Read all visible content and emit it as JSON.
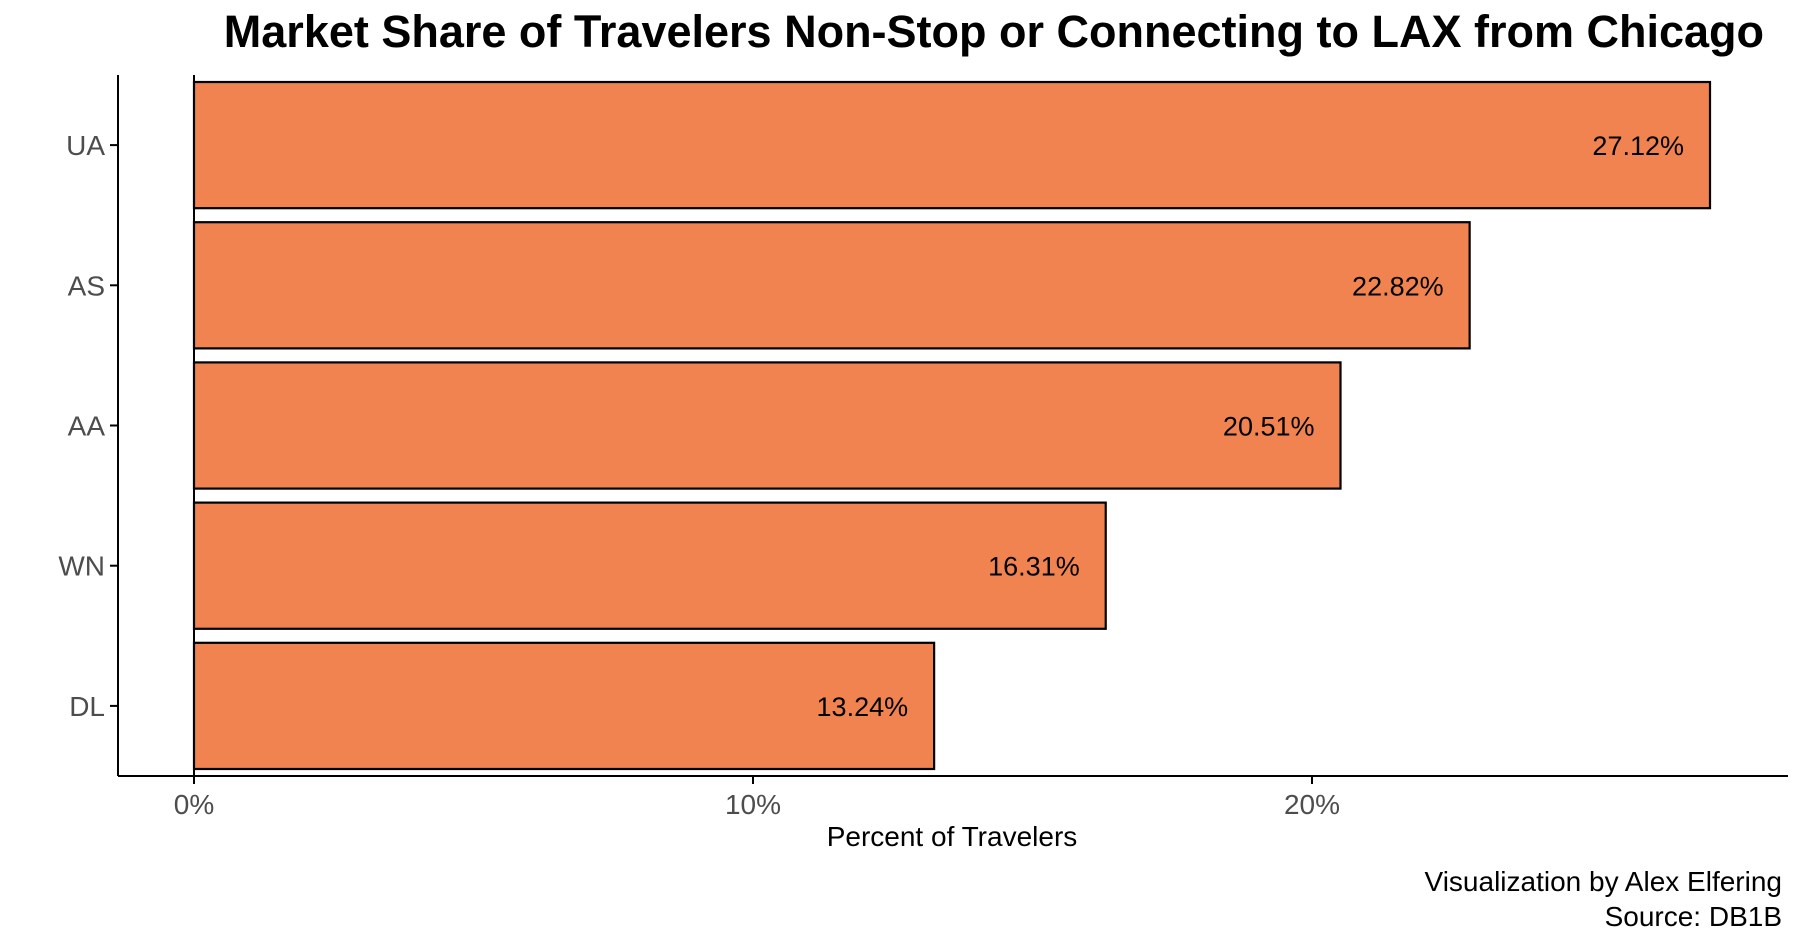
{
  "chart_data": {
    "type": "bar",
    "orientation": "horizontal",
    "title": "Market Share of Travelers Non-Stop or Connecting to LAX from Chicago",
    "xlabel": "Percent of Travelers",
    "ylabel": "",
    "categories": [
      "UA",
      "AS",
      "AA",
      "WN",
      "DL"
    ],
    "values": [
      27.12,
      22.82,
      20.51,
      16.31,
      13.24
    ],
    "value_labels": [
      "27.12%",
      "22.82%",
      "20.51%",
      "16.31%",
      "13.24%"
    ],
    "x_ticks": [
      0,
      10,
      20
    ],
    "x_tick_labels": [
      "0%",
      "10%",
      "20%"
    ],
    "xlim": [
      -1.38,
      28.5
    ],
    "grid": false,
    "legend": "none",
    "bar_color": "#F0834F",
    "bar_outline": "#000000",
    "caption_lines": [
      "Visualization by Alex Elfering",
      "Source: DB1B"
    ]
  }
}
